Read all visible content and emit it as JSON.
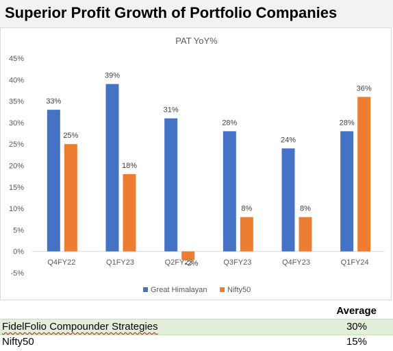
{
  "page_title": "Superior Profit Growth of Portfolio Companies",
  "chart_data": {
    "type": "bar",
    "title": "PAT YoY%",
    "categories": [
      "Q4FY22",
      "Q1FY23",
      "Q2FY23",
      "Q3FY23",
      "Q4FY23",
      "Q1FY24"
    ],
    "series": [
      {
        "name": "Great Himalayan",
        "color": "#4472c4",
        "values": [
          33,
          39,
          31,
          28,
          24,
          28
        ],
        "labels": [
          "33%",
          "39%",
          "31%",
          "28%",
          "24%",
          "28%"
        ]
      },
      {
        "name": "Nifty50",
        "color": "#ed7d31",
        "values": [
          25,
          18,
          -2,
          8,
          8,
          36
        ],
        "labels": [
          "25%",
          "18%",
          "-2%",
          "8%",
          "8%",
          "36%"
        ]
      }
    ],
    "y_ticks": [
      "45%",
      "40%",
      "35%",
      "30%",
      "25%",
      "20%",
      "15%",
      "10%",
      "5%",
      "0%",
      "-5%"
    ],
    "ylim": [
      -5,
      45
    ],
    "grid": false,
    "legend": "bottom"
  },
  "summary": {
    "header": "Average",
    "rows": [
      {
        "name": "FidelFolio Compounder Strategies",
        "value": "30%"
      },
      {
        "name": "Nifty50",
        "value": "15%"
      }
    ]
  }
}
